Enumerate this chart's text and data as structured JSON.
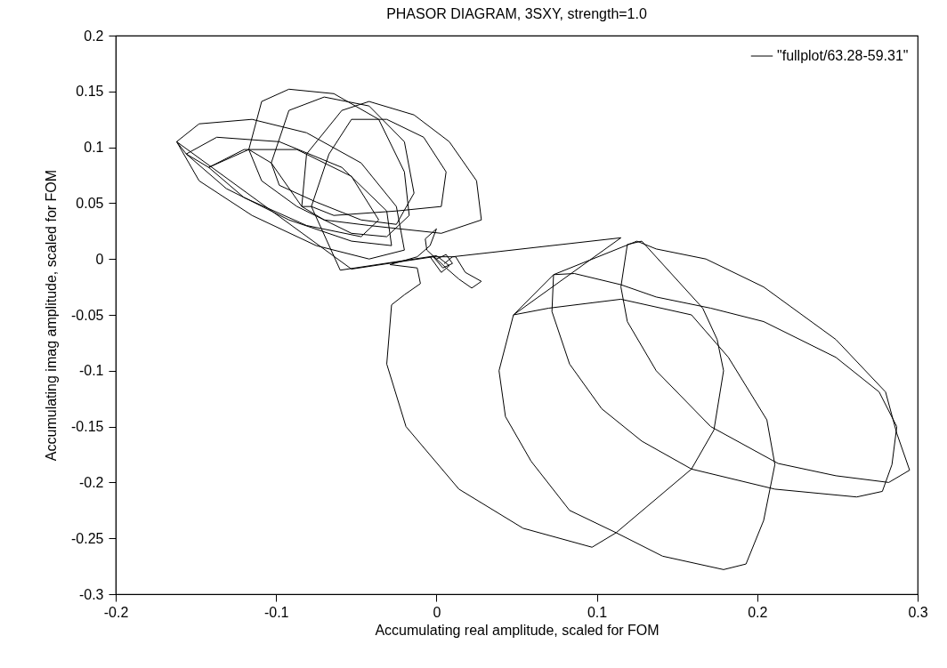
{
  "chart_data": {
    "type": "line",
    "title": "PHASOR DIAGRAM, 3SXY, strength=1.0",
    "xlabel": "Accumulating real amplitude, scaled for FOM",
    "ylabel": "Accumulating imag amplitude, scaled for FOM",
    "xlim": [
      -0.2,
      0.3
    ],
    "ylim": [
      -0.3,
      0.2
    ],
    "xticks": [
      -0.2,
      -0.1,
      0,
      0.1,
      0.2,
      0.3
    ],
    "yticks": [
      -0.3,
      -0.25,
      -0.2,
      -0.15,
      -0.1,
      -0.05,
      0,
      0.05,
      0.1,
      0.15,
      0.2
    ],
    "legend": "top right",
    "series": [
      {
        "name": "\"fullplot/63.28-59.31\"",
        "color": "#000000",
        "x": [
          0,
          0.006,
          0.01,
          0.004,
          -0.002,
          -0.053,
          -0.162,
          -0.148,
          -0.115,
          -0.081,
          -0.047,
          -0.025,
          -0.02,
          -0.042,
          -0.075,
          -0.115,
          -0.148,
          -0.162,
          -0.156,
          -0.137,
          -0.098,
          -0.059,
          -0.031,
          -0.028,
          -0.053,
          -0.092,
          -0.131,
          -0.156,
          -0.142,
          -0.12,
          -0.087,
          -0.053,
          -0.036,
          -0.047,
          -0.081,
          -0.12,
          -0.142,
          -0.117,
          -0.109,
          -0.092,
          -0.064,
          -0.036,
          -0.02,
          -0.017,
          -0.031,
          -0.053,
          -0.087,
          -0.109,
          -0.117,
          -0.103,
          -0.092,
          -0.07,
          -0.042,
          -0.02,
          -0.014,
          -0.025,
          -0.047,
          -0.075,
          -0.098,
          -0.103,
          -0.084,
          -0.081,
          -0.059,
          -0.042,
          -0.014,
          0.008,
          0.025,
          0.028,
          0.003,
          -0.042,
          -0.07,
          -0.084,
          -0.078,
          -0.067,
          -0.053,
          -0.031,
          -0.008,
          0.006,
          0.003,
          -0.025,
          -0.064,
          -0.078,
          -0.06,
          0,
          0.008,
          0.003,
          -0.004,
          0.012,
          0.018,
          0.028,
          0.022,
          0.014,
          0.006,
          -0.006,
          -0.007,
          0,
          -0.004,
          -0.012,
          -0.029,
          -0.012,
          -0.01,
          -0.02,
          -0.028,
          -0.031,
          -0.019,
          0.014,
          0.054,
          0.097,
          0.112,
          0.159,
          0.173,
          0.179,
          0.175,
          0.166,
          0.128,
          0.119,
          0.115,
          0.119,
          0.137,
          0.171,
          0.213,
          0.249,
          0.282,
          0.295,
          0.287,
          0.28,
          0.249,
          0.204,
          0.168,
          0.137,
          0.125,
          0.073,
          0.072,
          0.083,
          0.103,
          0.128,
          0.159,
          0.211,
          0.262,
          0.278,
          0.284,
          0.287,
          0.276,
          0.249,
          0.204,
          0.171,
          0.137,
          0.115,
          0.086,
          0.073,
          0.048,
          0.039,
          0.043,
          0.059,
          0.083,
          0.112,
          0.141,
          0.179,
          0.193,
          0.204,
          0.211,
          0.206,
          0.182,
          0.159,
          0.115,
          0.07,
          0.048,
          0.115,
          0.01,
          0.005
        ],
        "values": [
          0,
          0.004,
          -0.004,
          -0.008,
          0.002,
          -0.009,
          0.105,
          0.121,
          0.125,
          0.113,
          0.086,
          0.047,
          0.008,
          0,
          0.012,
          0.039,
          0.07,
          0.105,
          0.094,
          0.109,
          0.105,
          0.082,
          0.043,
          0.012,
          0.016,
          0.035,
          0.063,
          0.094,
          0.082,
          0.098,
          0.098,
          0.074,
          0.035,
          0.02,
          0.03,
          0.055,
          0.082,
          0.098,
          0.141,
          0.152,
          0.148,
          0.125,
          0.078,
          0.039,
          0.02,
          0.023,
          0.047,
          0.07,
          0.098,
          0.086,
          0.133,
          0.145,
          0.137,
          0.105,
          0.059,
          0.031,
          0.035,
          0.051,
          0.066,
          0.086,
          0.047,
          0.094,
          0.133,
          0.141,
          0.129,
          0.105,
          0.07,
          0.035,
          0.023,
          0.03,
          0.035,
          0.047,
          0.047,
          0.094,
          0.125,
          0.125,
          0.109,
          0.078,
          0.047,
          0.043,
          0.039,
          0.047,
          -0.01,
          0.003,
          -0.006,
          -0.012,
          0.002,
          0.002,
          -0.012,
          -0.02,
          -0.026,
          -0.018,
          -0.008,
          0.008,
          0.018,
          0.027,
          0.012,
          0.002,
          -0.005,
          -0.008,
          -0.022,
          -0.032,
          -0.041,
          -0.094,
          -0.15,
          -0.206,
          -0.241,
          -0.258,
          -0.245,
          -0.188,
          -0.153,
          -0.1,
          -0.072,
          -0.044,
          0.016,
          0.013,
          -0.025,
          -0.056,
          -0.1,
          -0.15,
          -0.183,
          -0.194,
          -0.2,
          -0.189,
          -0.156,
          -0.119,
          -0.072,
          -0.025,
          0,
          0.009,
          0.016,
          -0.014,
          -0.047,
          -0.094,
          -0.134,
          -0.163,
          -0.188,
          -0.206,
          -0.213,
          -0.208,
          -0.184,
          -0.15,
          -0.119,
          -0.088,
          -0.056,
          -0.044,
          -0.034,
          -0.023,
          -0.013,
          -0.014,
          -0.05,
          -0.1,
          -0.141,
          -0.181,
          -0.225,
          -0.245,
          -0.266,
          -0.278,
          -0.273,
          -0.234,
          -0.184,
          -0.144,
          -0.088,
          -0.05,
          -0.036,
          -0.044,
          -0.05,
          0.019,
          0.002,
          -0.004
        ]
      }
    ]
  }
}
